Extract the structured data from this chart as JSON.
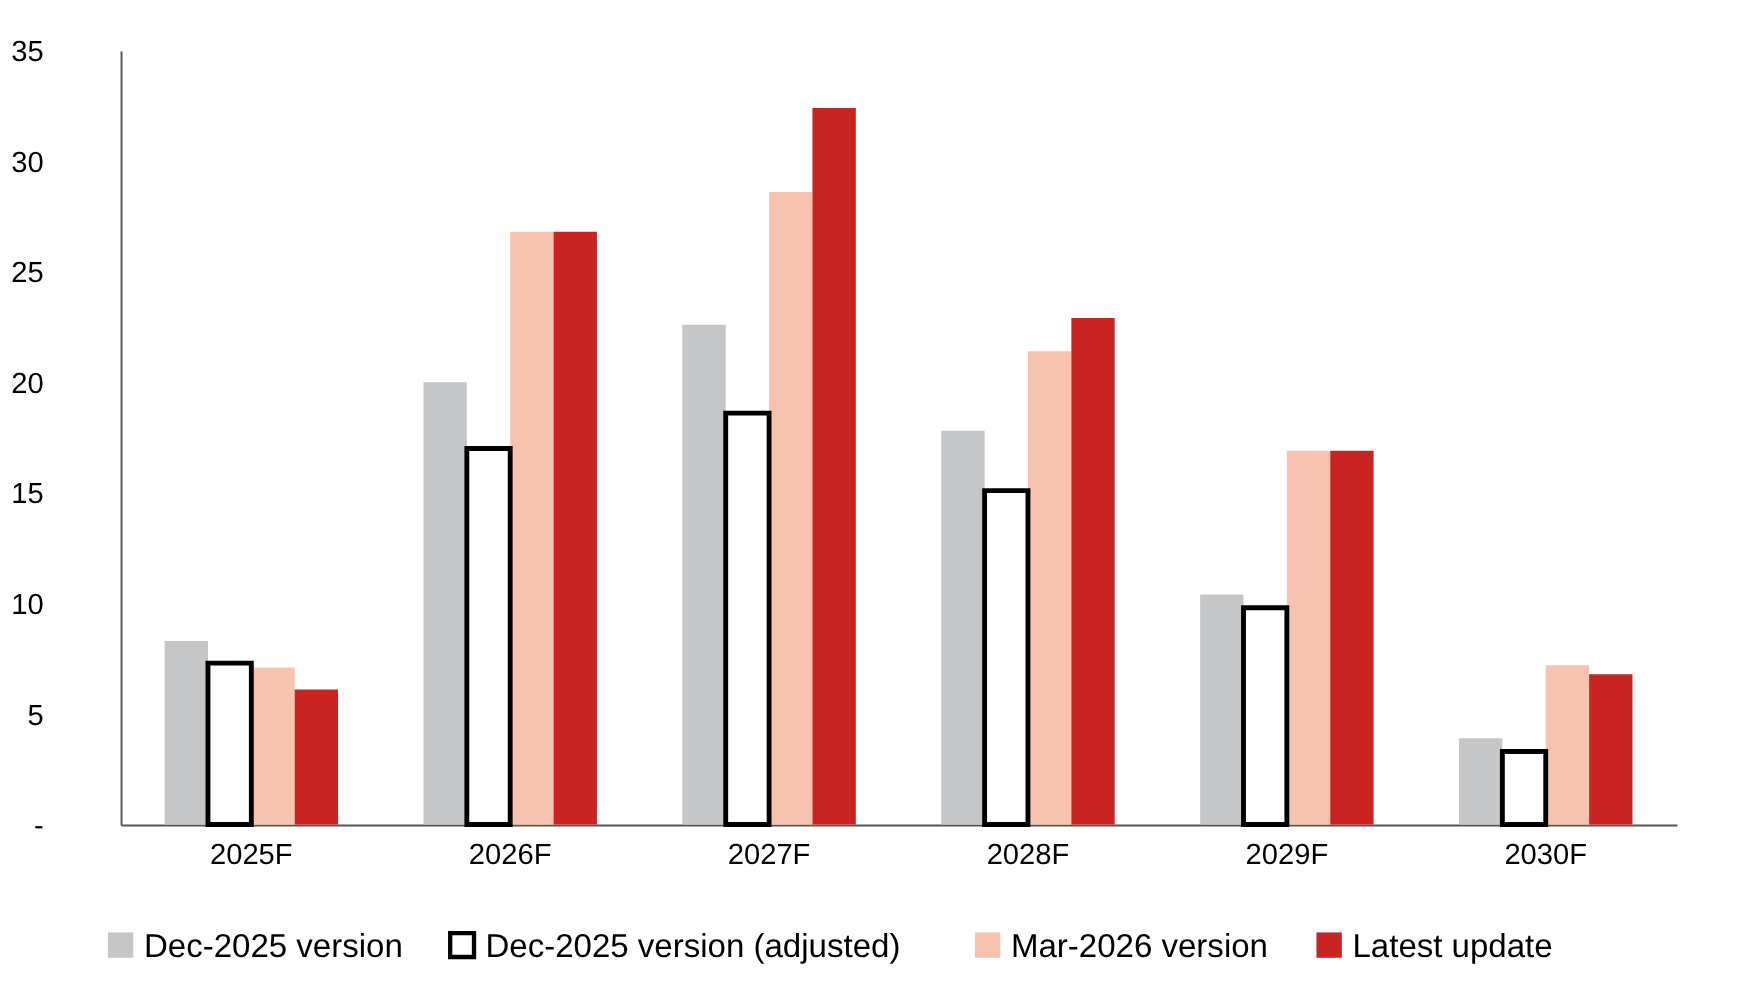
{
  "chart_data": {
    "type": "bar",
    "categories": [
      "2025F",
      "2026F",
      "2027F",
      "2028F",
      "2029F",
      "2030F"
    ],
    "series": [
      {
        "name": "Dec-2025 version",
        "color": "#c5c6c8",
        "values": [
          8.3,
          20.0,
          22.6,
          17.8,
          10.4,
          3.9
        ]
      },
      {
        "name": "Dec-2025 version (adjusted)",
        "color": "#000000",
        "line_style": "solid",
        "values": [
          7.3,
          17.0,
          18.6,
          15.1,
          9.8,
          3.3
        ]
      },
      {
        "name": "Mar-2026 version",
        "color": "#f8c3ae",
        "values": [
          7.1,
          26.8,
          28.6,
          21.4,
          16.9,
          7.2
        ]
      },
      {
        "name": "Latest update",
        "color": "#c92421",
        "values": [
          6.1,
          26.8,
          32.4,
          22.9,
          16.9,
          6.8
        ]
      }
    ],
    "ylim": [
      0,
      35
    ],
    "yticks": [
      {
        "value": 0,
        "label": "-"
      },
      5,
      10,
      15,
      20,
      25,
      30,
      35
    ],
    "grid": false,
    "legend": "bottom"
  }
}
